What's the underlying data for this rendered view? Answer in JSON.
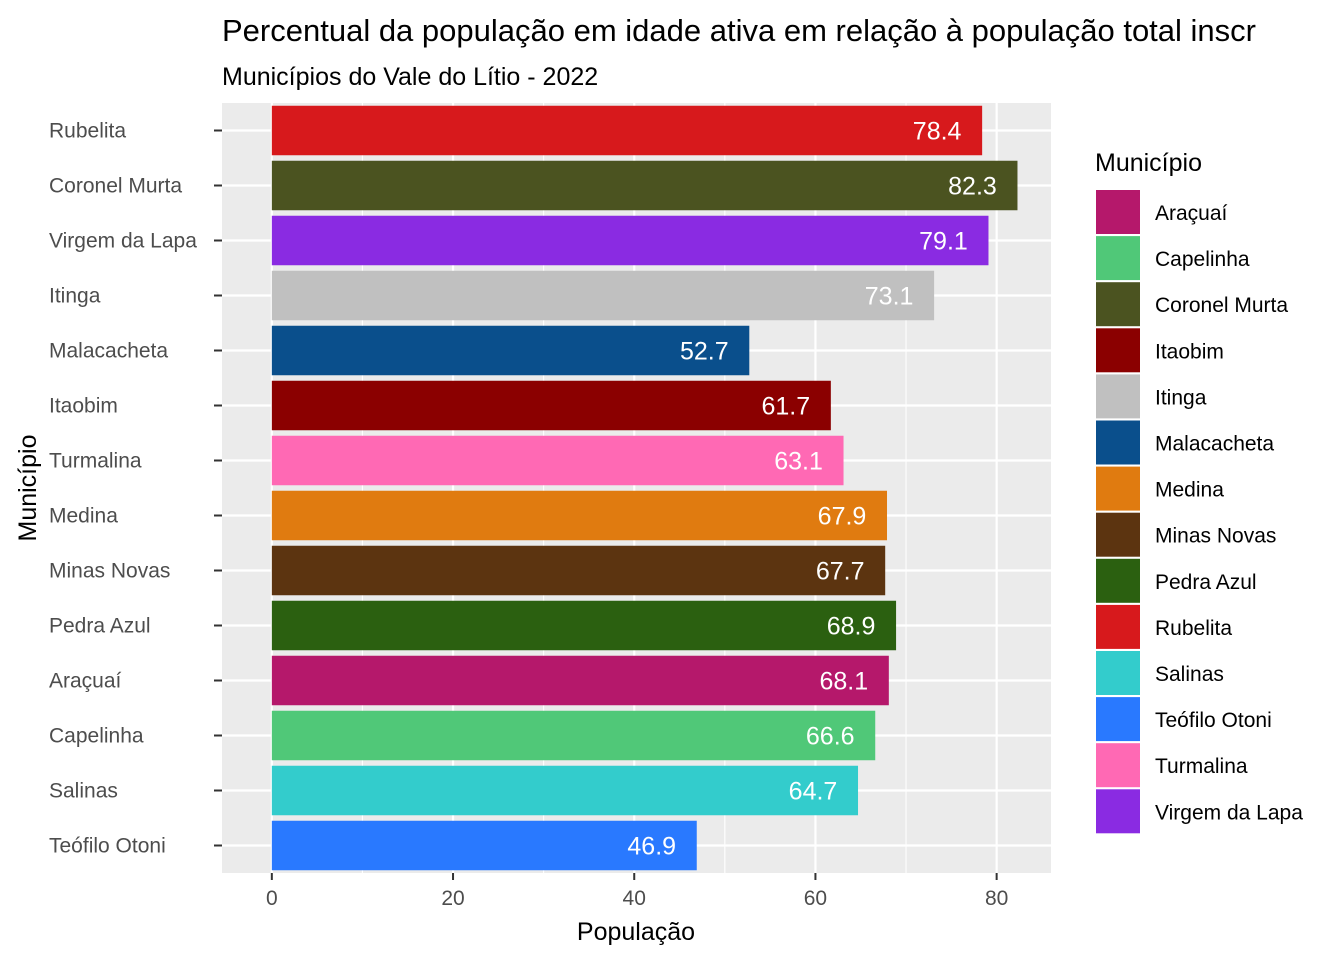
{
  "chart_data": {
    "type": "bar",
    "orientation": "horizontal",
    "title": "Percentual da população em idade ativa em relação à população total inscr",
    "subtitle": "Municípios do Vale do Lítio - 2022",
    "xlabel": "População",
    "ylabel": "Município",
    "xlim": [
      -5.5,
      86
    ],
    "x_ticks": [
      0,
      20,
      40,
      60,
      80
    ],
    "grid": true,
    "legend_position": "right",
    "legend_title": "Município",
    "categories": [
      "Rubelita",
      "Coronel Murta",
      "Virgem da Lapa",
      "Itinga",
      "Malacacheta",
      "Itaobim",
      "Turmalina",
      "Medina",
      "Minas Novas",
      "Pedra Azul",
      "Araçuaí",
      "Capelinha",
      "Salinas",
      "Teófilo Otoni"
    ],
    "values": [
      78.4,
      82.3,
      79.1,
      73.1,
      52.7,
      61.7,
      63.1,
      67.9,
      67.7,
      68.9,
      68.1,
      66.6,
      64.7,
      46.9
    ],
    "data_labels": [
      "78.4",
      "82.3",
      "79.1",
      "73.1",
      "52.7",
      "61.7",
      "63.1",
      "67.9",
      "67.7",
      "68.9",
      "68.1",
      "66.6",
      "64.7",
      "46.9"
    ],
    "legend": [
      {
        "name": "Araçuaí",
        "color": "#B5186B"
      },
      {
        "name": "Capelinha",
        "color": "#50C878"
      },
      {
        "name": "Coronel Murta",
        "color": "#4B5320"
      },
      {
        "name": "Itaobim",
        "color": "#8B0000"
      },
      {
        "name": "Itinga",
        "color": "#C0C0C0"
      },
      {
        "name": "Malacacheta",
        "color": "#0A4F8C"
      },
      {
        "name": "Medina",
        "color": "#E07B10"
      },
      {
        "name": "Minas Novas",
        "color": "#5C3410"
      },
      {
        "name": "Pedra Azul",
        "color": "#2B6010"
      },
      {
        "name": "Rubelita",
        "color": "#D7191C"
      },
      {
        "name": "Salinas",
        "color": "#33CCCC"
      },
      {
        "name": "Teófilo Otoni",
        "color": "#2979FF"
      },
      {
        "name": "Turmalina",
        "color": "#FF69B4"
      },
      {
        "name": "Virgem da Lapa",
        "color": "#8A2BE2"
      }
    ]
  }
}
